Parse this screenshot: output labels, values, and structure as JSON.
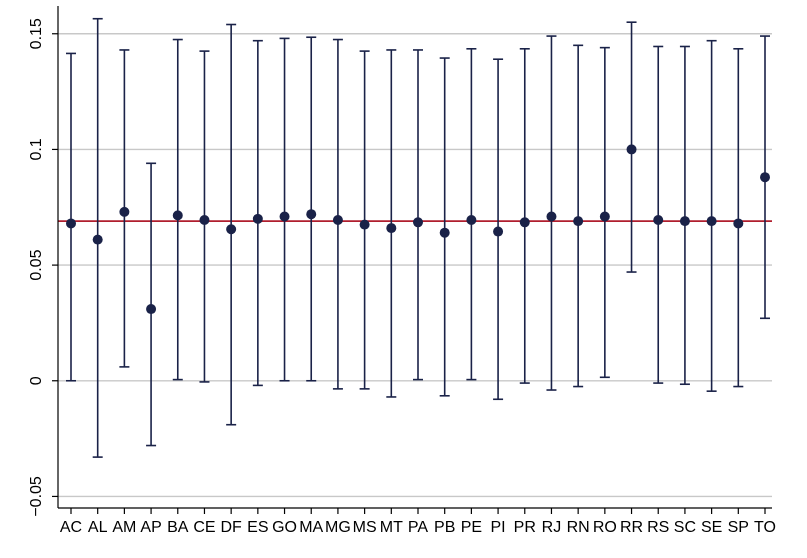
{
  "chart_data": {
    "type": "scatter",
    "title": "",
    "xlabel": "",
    "ylabel": "",
    "ylim": [
      -0.055,
      0.162
    ],
    "grid": true,
    "y_ticks": [
      -0.05,
      0,
      0.05,
      0.1,
      0.15
    ],
    "y_tick_labels": [
      "−0.05",
      "0",
      "0.05",
      "0.1",
      "0.15"
    ],
    "reference_line": {
      "y": 0.069,
      "color": "#b01e2e"
    },
    "marker_color": "#1a2248",
    "categories": [
      "AC",
      "AL",
      "AM",
      "AP",
      "BA",
      "CE",
      "DF",
      "ES",
      "GO",
      "MA",
      "MG",
      "MS",
      "MT",
      "PA",
      "PB",
      "PE",
      "PI",
      "PR",
      "RJ",
      "RN",
      "RO",
      "RR",
      "RS",
      "SC",
      "SE",
      "SP",
      "TO"
    ],
    "estimate": [
      0.068,
      0.061,
      0.073,
      0.031,
      0.0715,
      0.0695,
      0.0655,
      0.07,
      0.071,
      0.072,
      0.0695,
      0.0675,
      0.066,
      0.0685,
      0.064,
      0.0695,
      0.0645,
      0.0685,
      0.071,
      0.069,
      0.071,
      0.1,
      0.0695,
      0.069,
      0.069,
      0.068,
      0.088
    ],
    "ci_low": [
      0.0,
      -0.033,
      0.006,
      -0.028,
      0.0005,
      -0.0005,
      -0.019,
      -0.002,
      0.0,
      0.0,
      -0.0035,
      -0.0035,
      -0.007,
      0.0005,
      -0.0065,
      0.0005,
      -0.008,
      -0.001,
      -0.004,
      -0.0025,
      0.0015,
      0.047,
      -0.001,
      -0.0015,
      -0.0045,
      -0.0025,
      0.027
    ],
    "ci_high": [
      0.1415,
      0.1565,
      0.143,
      0.094,
      0.1475,
      0.1425,
      0.154,
      0.147,
      0.148,
      0.1485,
      0.1475,
      0.1425,
      0.143,
      0.143,
      0.1395,
      0.1435,
      0.139,
      0.1435,
      0.149,
      0.145,
      0.144,
      0.155,
      0.1445,
      0.1445,
      0.147,
      0.1435,
      0.149
    ]
  }
}
